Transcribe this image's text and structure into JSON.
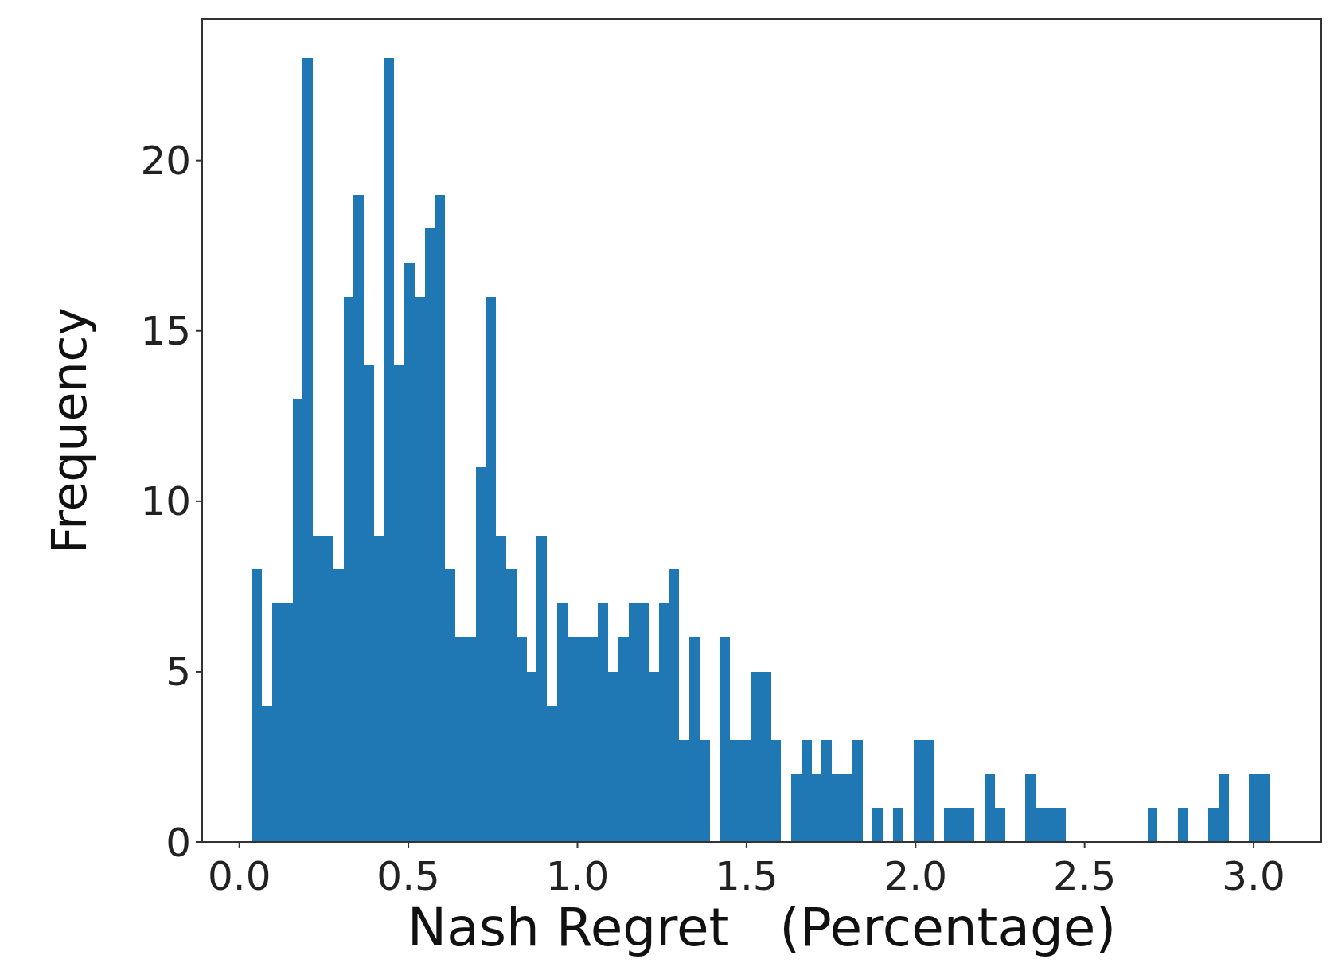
{
  "chart_data": {
    "type": "histogram",
    "xlabel": "Nash Regret   (Percentage)",
    "ylabel": "Frequency",
    "color": "#1f77b4",
    "bins": [
      0.037,
      0.0671,
      0.0972,
      0.1273,
      0.1574,
      0.1875,
      0.2176,
      0.2477,
      0.2778,
      0.3079,
      0.338,
      0.3681,
      0.3982,
      0.4283,
      0.4584,
      0.4885,
      0.5186,
      0.5487,
      0.5788,
      0.6089,
      0.639,
      0.6691,
      0.6992,
      0.7293,
      0.7594,
      0.7895,
      0.8196,
      0.8497,
      0.8798,
      0.9099,
      0.94,
      0.9701,
      1.0002,
      1.0303,
      1.0604,
      1.0905,
      1.1206,
      1.1507,
      1.1808,
      1.2109,
      1.241,
      1.2711,
      1.3012,
      1.3313,
      1.3614,
      1.3915,
      1.4216,
      1.4517,
      1.4818,
      1.5119,
      1.542,
      1.5721,
      1.6022,
      1.6323,
      1.6624,
      1.6925,
      1.7226,
      1.7527,
      1.7828,
      1.8129,
      1.843,
      1.8731,
      1.9032,
      1.9333,
      1.9634,
      1.9935,
      2.0236,
      2.0537,
      2.0838,
      2.1139,
      2.144,
      2.1741,
      2.2042,
      2.2343,
      2.2644,
      2.2945,
      2.3246,
      2.3547,
      2.3848,
      2.4149,
      2.445,
      2.4751,
      2.5052,
      2.5353,
      2.5654,
      2.5955,
      2.6256,
      2.6557,
      2.6858,
      2.7159,
      2.746,
      2.7761,
      2.8062,
      2.8363,
      2.8664,
      2.8965,
      2.9266,
      2.9567,
      2.9868,
      3.0169,
      3.047
    ],
    "values": [
      8,
      4,
      7,
      7,
      13,
      23,
      9,
      9,
      8,
      16,
      19,
      14,
      9,
      23,
      14,
      17,
      16,
      18,
      19,
      8,
      6,
      6,
      11,
      16,
      9,
      8,
      6,
      5,
      9,
      4,
      7,
      6,
      6,
      6,
      7,
      5,
      6,
      7,
      7,
      5,
      7,
      8,
      3,
      6,
      3,
      0,
      6,
      3,
      3,
      5,
      5,
      3,
      0,
      2,
      3,
      2,
      3,
      2,
      2,
      3,
      0,
      1,
      0,
      1,
      0,
      3,
      3,
      0,
      1,
      1,
      1,
      0,
      2,
      1,
      0,
      0,
      2,
      1,
      1,
      1,
      0,
      0,
      0,
      0,
      0,
      0,
      0,
      0,
      1,
      0,
      0,
      1,
      0,
      0,
      1,
      2,
      0,
      0,
      2,
      2
    ],
    "xlim": [
      -0.11,
      3.2
    ],
    "ylim": [
      0,
      24.15
    ],
    "xticks": [
      {
        "value": 0,
        "label": "0.0"
      },
      0.5,
      {
        "value": 1,
        "label": "1.0"
      },
      1.5,
      {
        "value": 2,
        "label": "2.0"
      },
      2.5,
      {
        "value": 3,
        "label": "3.0"
      }
    ],
    "yticks": [
      0,
      5,
      10,
      15,
      20
    ],
    "grid": false
  }
}
